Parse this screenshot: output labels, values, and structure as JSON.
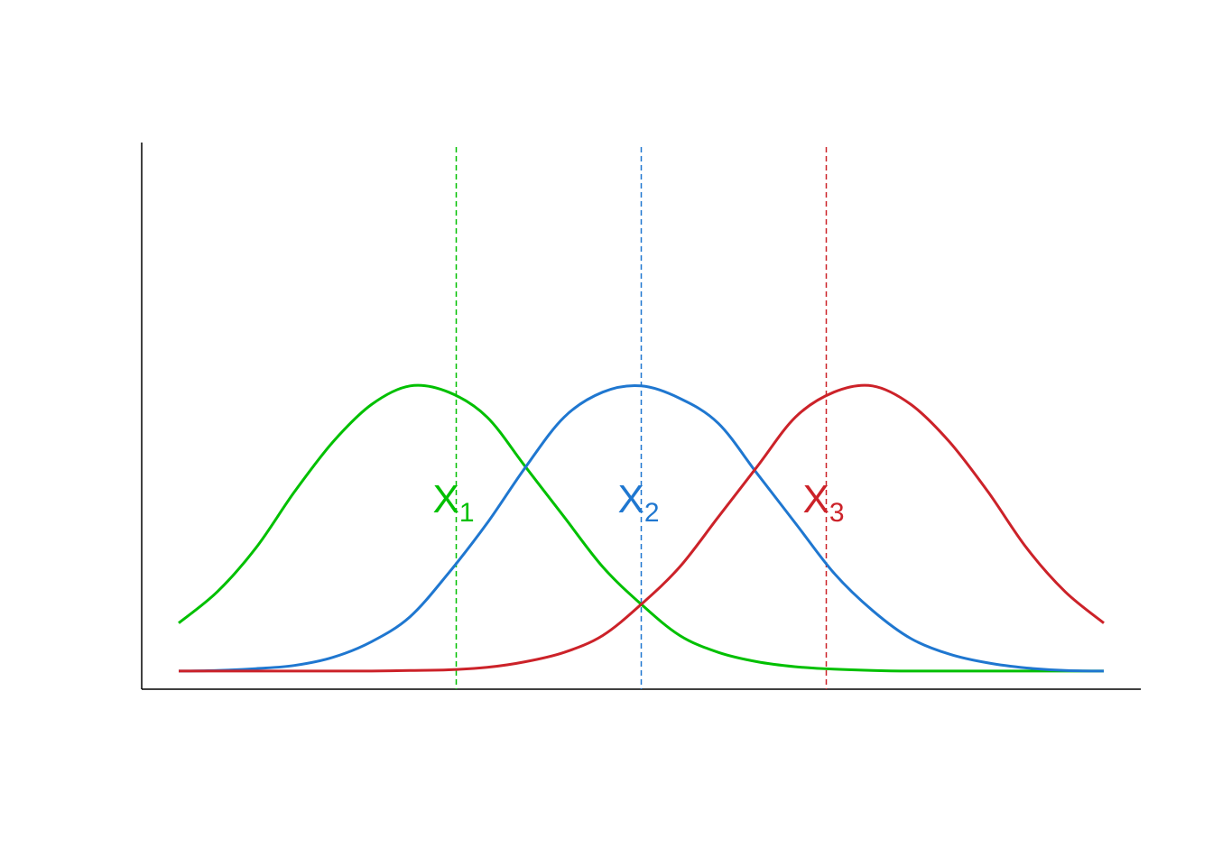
{
  "chart_data": {
    "type": "line",
    "title": "",
    "xlabel": "",
    "ylabel": "",
    "xlim": [
      -6,
      6
    ],
    "ylim": [
      0,
      0.85
    ],
    "grid": false,
    "legend": "none",
    "x": [
      -6,
      -5.5,
      -5,
      -4.5,
      -4,
      -3.5,
      -3,
      -2.5,
      -2,
      -1.5,
      -1,
      -0.5,
      0,
      0.5,
      1,
      1.5,
      2,
      2.5,
      3,
      3.5,
      4,
      4.5,
      5,
      5.5,
      6
    ],
    "series": [
      {
        "label": "X",
        "subscript": "1",
        "mean": -2.4,
        "color": "#00C000",
        "values": [
          0.08,
          0.13,
          0.2,
          0.29,
          0.37,
          0.43,
          0.46,
          0.45,
          0.41,
          0.33,
          0.25,
          0.17,
          0.11,
          0.06,
          0.033,
          0.018,
          0.01,
          0.006,
          0.004,
          0.003,
          0.003,
          0.003,
          0.003,
          0.003,
          0.003
        ]
      },
      {
        "label": "X",
        "subscript": "2",
        "mean": 0,
        "color": "#1F77D0",
        "values": [
          0.003,
          0.004,
          0.007,
          0.012,
          0.025,
          0.05,
          0.09,
          0.16,
          0.24,
          0.33,
          0.41,
          0.45,
          0.46,
          0.44,
          0.4,
          0.32,
          0.24,
          0.16,
          0.1,
          0.055,
          0.03,
          0.016,
          0.008,
          0.004,
          0.003
        ]
      },
      {
        "label": "X",
        "subscript": "3",
        "mean": 2.4,
        "color": "#CC2229",
        "values": [
          0.003,
          0.003,
          0.003,
          0.003,
          0.003,
          0.003,
          0.004,
          0.005,
          0.009,
          0.018,
          0.033,
          0.06,
          0.11,
          0.17,
          0.25,
          0.33,
          0.41,
          0.45,
          0.46,
          0.43,
          0.37,
          0.29,
          0.2,
          0.13,
          0.08
        ]
      }
    ]
  }
}
